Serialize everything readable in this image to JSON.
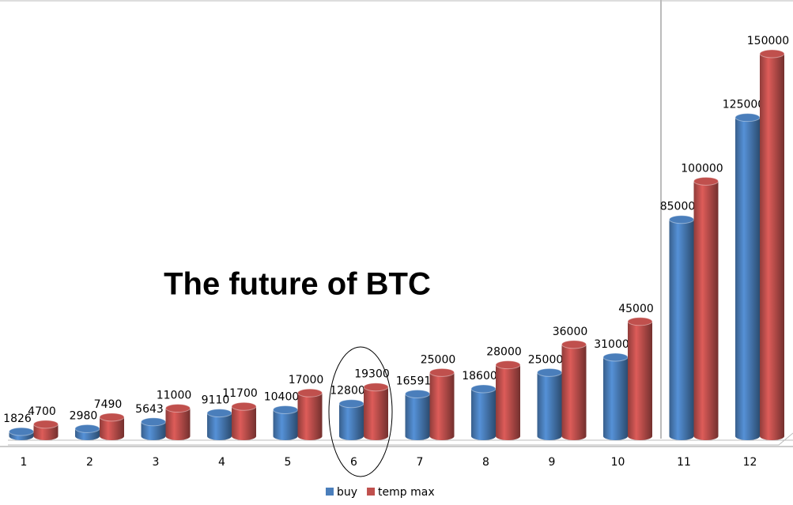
{
  "chart_data": {
    "type": "bar",
    "title": "The future of BTC",
    "categories": [
      1,
      2,
      3,
      4,
      5,
      6,
      7,
      8,
      9,
      10,
      11,
      12
    ],
    "series": [
      {
        "name": "buy",
        "color": "#4a7ebb",
        "values": [
          1826,
          2980,
          5643,
          9110,
          10400,
          12800,
          16591,
          18600,
          25000,
          31000,
          85000,
          125000
        ]
      },
      {
        "name": "temp max",
        "color": "#c0504d",
        "values": [
          4700,
          7490,
          11000,
          11700,
          17000,
          19300,
          25000,
          28000,
          36000,
          45000,
          100000,
          150000
        ]
      }
    ],
    "legend": "bottom"
  }
}
